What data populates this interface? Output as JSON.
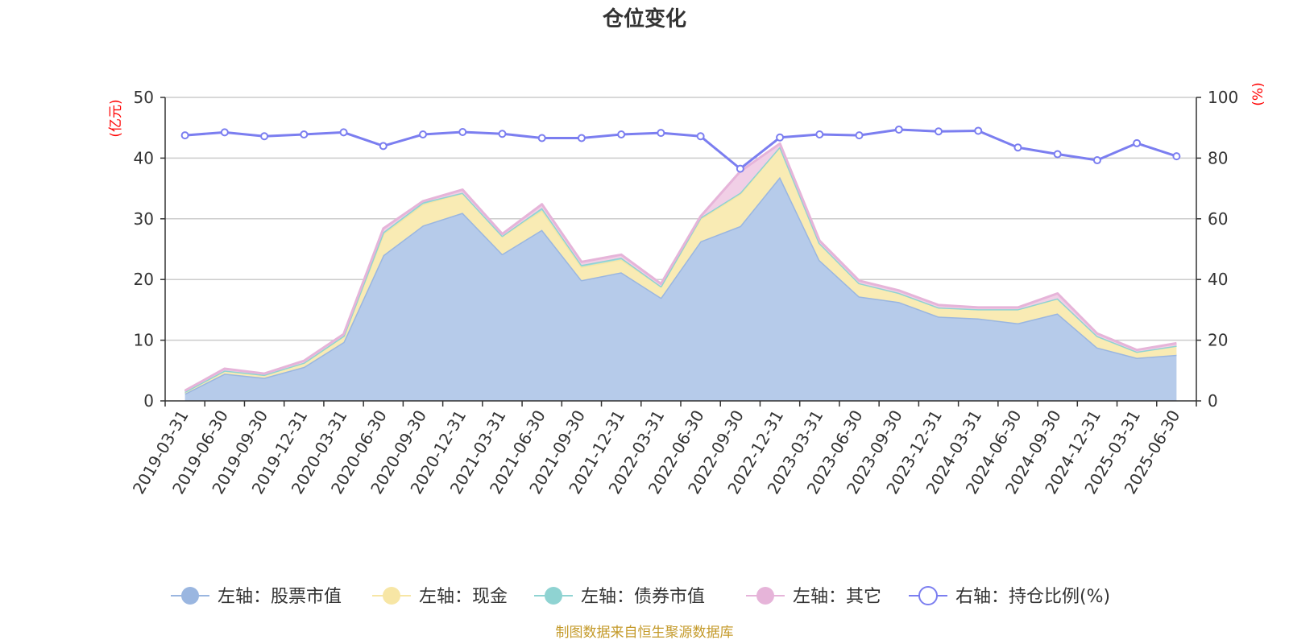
{
  "chart_data": {
    "type": "area",
    "title": "仓位变化",
    "left_axis_name": "(亿元)",
    "right_axis_name": "(%)",
    "left_ylim": [
      0,
      50
    ],
    "left_ticks": [
      0,
      10,
      20,
      30,
      40,
      50
    ],
    "right_ylim": [
      0,
      100
    ],
    "right_ticks": [
      0,
      20,
      40,
      60,
      80,
      100
    ],
    "grid": true,
    "legend_position": "bottom",
    "categories": [
      "2019-03-31",
      "2019-06-30",
      "2019-09-30",
      "2019-12-31",
      "2020-03-31",
      "2020-06-30",
      "2020-09-30",
      "2020-12-31",
      "2021-03-31",
      "2021-06-30",
      "2021-09-30",
      "2021-12-31",
      "2022-03-31",
      "2022-06-30",
      "2022-09-30",
      "2022-12-31",
      "2023-03-31",
      "2023-06-30",
      "2023-09-30",
      "2023-12-31",
      "2024-03-31",
      "2024-06-30",
      "2024-09-30",
      "2024-12-31",
      "2025-03-31",
      "2025-06-30"
    ],
    "series": [
      {
        "name": "左轴：股票市值",
        "axis": "left",
        "kind": "stacked-area",
        "color": "#9ab6e0",
        "fill": "#b6cbea",
        "values": [
          1.2,
          4.5,
          3.8,
          5.6,
          9.7,
          24.0,
          28.9,
          31.0,
          24.2,
          28.2,
          19.9,
          21.2,
          17.0,
          26.3,
          28.8,
          36.9,
          23.2,
          17.2,
          16.3,
          13.9,
          13.6,
          12.8,
          14.4,
          8.8,
          7.1,
          7.6
        ]
      },
      {
        "name": "左轴：现金",
        "axis": "left",
        "kind": "stacked-area",
        "color": "#f7e6a5",
        "fill": "#f9ebb4",
        "values": [
          0.3,
          0.5,
          0.5,
          0.7,
          1.0,
          3.5,
          3.5,
          3.3,
          3.0,
          3.2,
          2.2,
          2.1,
          1.9,
          3.7,
          5.3,
          5.0,
          2.8,
          2.2,
          1.5,
          1.5,
          1.5,
          2.3,
          2.5,
          1.9,
          1.0,
          1.5
        ]
      },
      {
        "name": "左轴：债券市值",
        "axis": "left",
        "kind": "stacked-area",
        "color": "#8fd3d2",
        "fill": "#a8dede",
        "values": [
          0,
          0,
          0,
          0,
          0,
          0.3,
          0.3,
          0,
          0,
          0.4,
          0.3,
          0.3,
          0,
          0.2,
          0.2,
          0,
          0,
          0,
          0,
          0,
          0,
          0,
          0,
          0,
          0,
          0
        ]
      },
      {
        "name": "左轴：其它",
        "axis": "left",
        "kind": "stacked-area",
        "color": "#e6b4d9",
        "fill": "#f1cfe6",
        "values": [
          0.2,
          0.3,
          0.2,
          0.3,
          0.3,
          0.6,
          0.2,
          0.5,
          0.3,
          0.6,
          0.5,
          0.5,
          0.4,
          0.2,
          3.5,
          0.5,
          0.4,
          0.4,
          0.4,
          0.4,
          0.3,
          0.3,
          0.8,
          0.4,
          0.3,
          0.4
        ]
      },
      {
        "name": "右轴：持仓比例(%)",
        "axis": "right",
        "kind": "line",
        "color": "#7b7ef0",
        "values": [
          87.5,
          88.5,
          87.2,
          87.8,
          88.5,
          84.0,
          87.8,
          88.6,
          88.0,
          86.6,
          86.6,
          87.8,
          88.3,
          87.2,
          76.5,
          86.8,
          87.8,
          87.5,
          89.4,
          88.8,
          89.0,
          83.5,
          81.3,
          79.3,
          84.9,
          80.6
        ]
      }
    ]
  },
  "source_text": "制图数据来自恒生聚源数据库",
  "colors": {
    "left_axis_name": "#ff0000",
    "right_axis_name": "#ff0000",
    "source_text": "#c49a2a",
    "grid": "#cccccc",
    "axis": "#333333"
  }
}
